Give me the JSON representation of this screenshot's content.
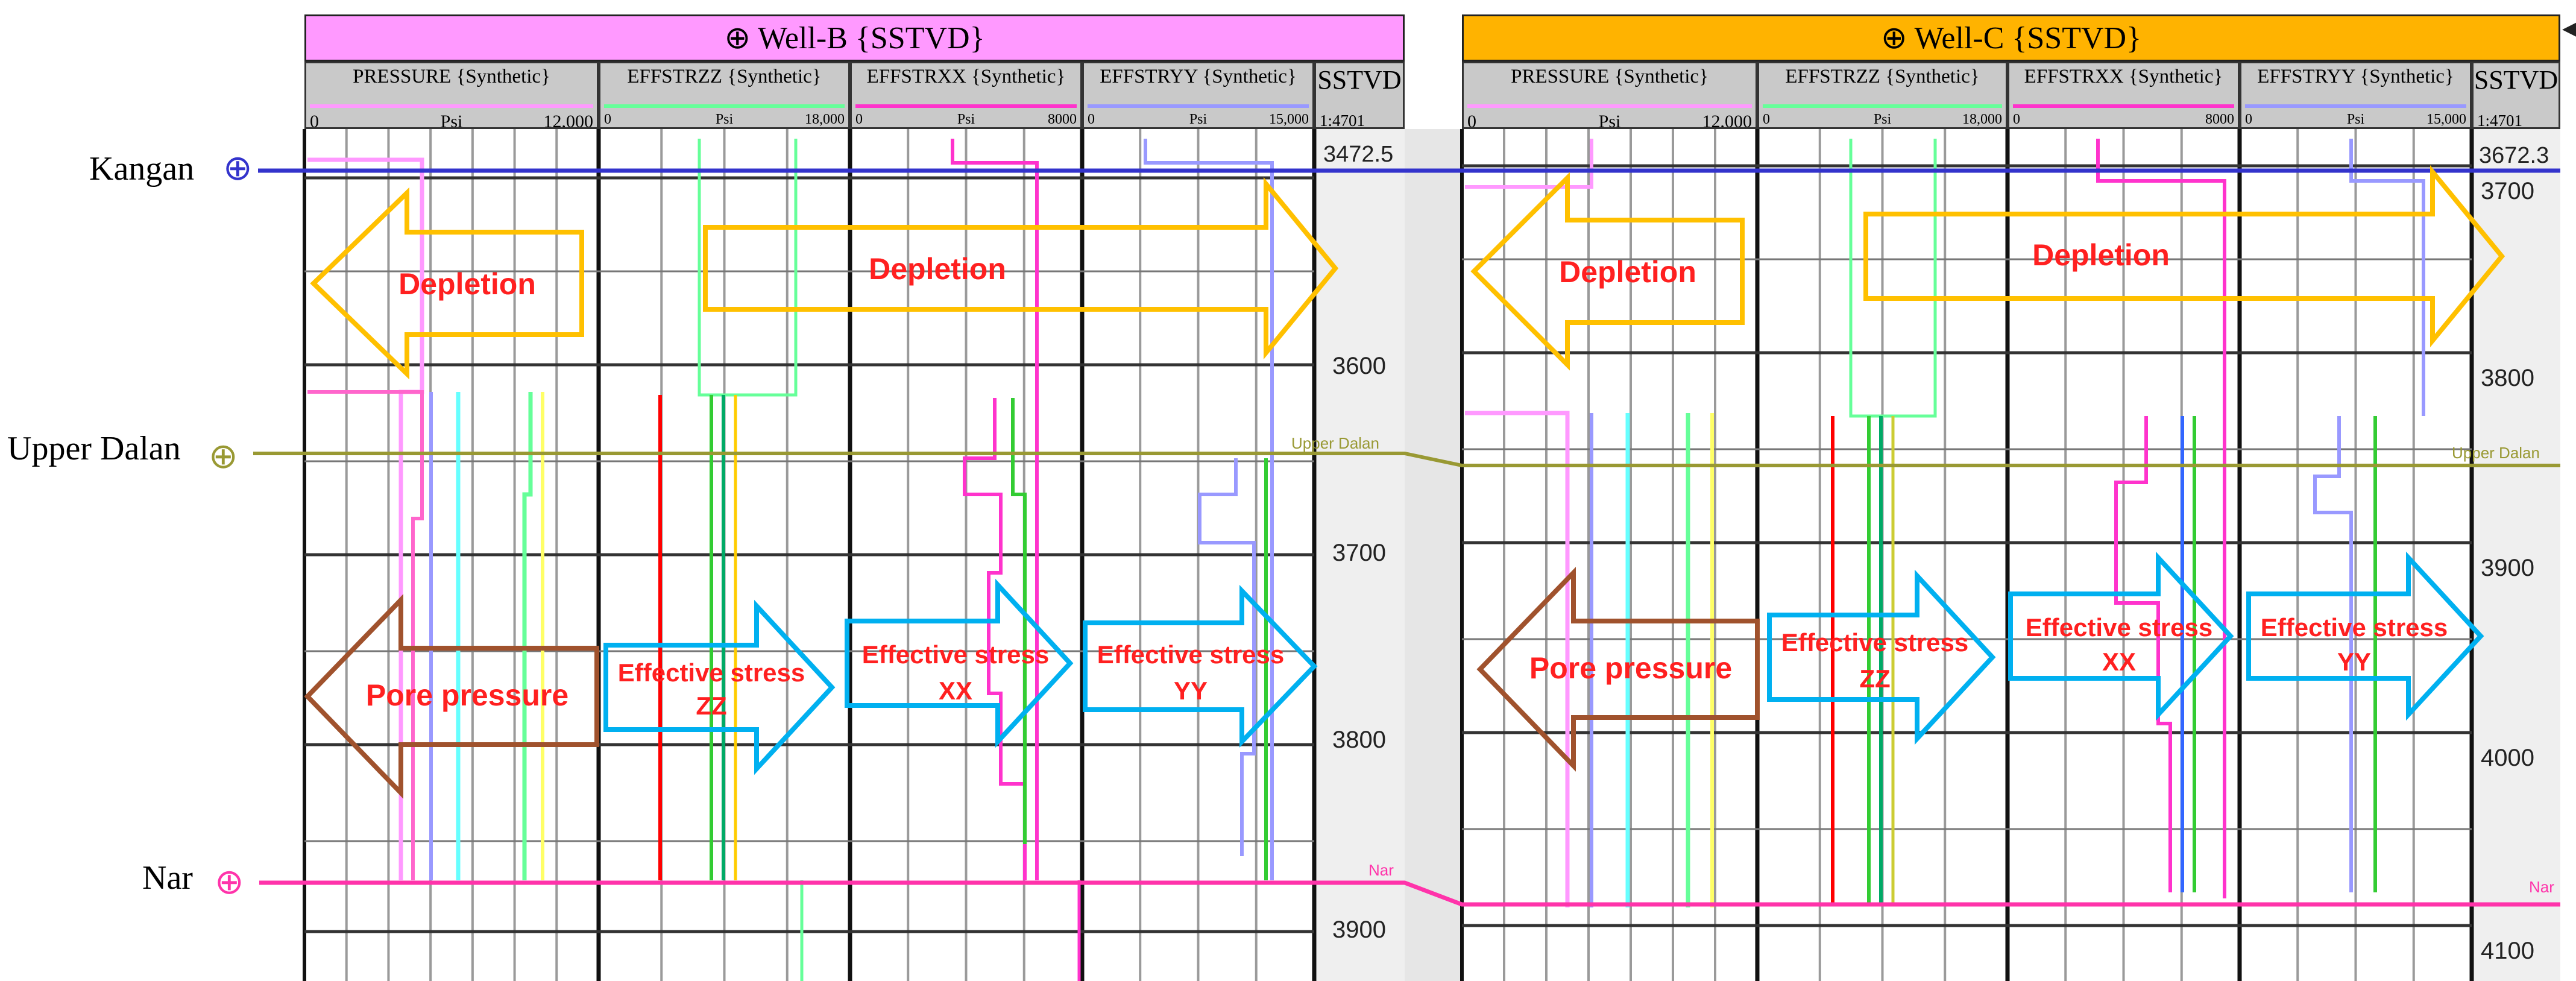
{
  "wells": [
    {
      "title": "Well-B {SSTVD}",
      "header_color": "#FF99FF",
      "tracks": [
        {
          "name": "PRESSURE {Synthetic}",
          "min": "0",
          "unit": "Psi",
          "max": "12,000",
          "color": "#FF99FF"
        },
        {
          "name": "EFFSTRZZ {Synthetic}",
          "min": "0",
          "unit": "Psi",
          "max": "18,000",
          "color": "#66FF99"
        },
        {
          "name": "EFFSTRXX {Synthetic}",
          "min": "0",
          "unit": "Psi",
          "max": "8000",
          "color": "#FF33CC"
        },
        {
          "name": "EFFSTRYY {Synthetic}",
          "min": "0",
          "unit": "Psi",
          "max": "15,000",
          "color": "#9999FF"
        }
      ],
      "depth_track": {
        "name": "SSTVD",
        "scale": "1:4701",
        "top_depth": "3472.5",
        "ticks": [
          "3600",
          "3700",
          "3800",
          "3900"
        ]
      },
      "horizon_labels": [
        "Kangan",
        "Upper Dalan",
        "Nar"
      ],
      "annotations": {
        "depletion_left": "Depletion",
        "depletion_right": "Depletion",
        "pore_pressure": "Pore pressure",
        "zz_line1": "Effective stress",
        "zz_line2": "ZZ",
        "xx_line1": "Effective stress",
        "xx_line2": "XX",
        "yy_line1": "Effective stress",
        "yy_line2": "YY"
      }
    },
    {
      "title": "Well-C {SSTVD}",
      "header_color": "#FFB300",
      "tracks": [
        {
          "name": "PRESSURE {Synthetic}",
          "min": "0",
          "unit": "Psi",
          "max": "12,000",
          "color": "#FF99FF"
        },
        {
          "name": "EFFSTRZZ {Synthetic}",
          "min": "0",
          "unit": "Psi",
          "max": "18,000",
          "color": "#66FF99"
        },
        {
          "name": "EFFSTRXX {Synthetic}",
          "min": "0",
          "unit": "",
          "max": "8000",
          "color": "#FF33CC"
        },
        {
          "name": "EFFSTRYY {Synthetic}",
          "min": "0",
          "unit": "Psi",
          "max": "15,000",
          "color": "#9999FF"
        }
      ],
      "depth_track": {
        "name": "SSTVD",
        "scale": "1:4701",
        "top_depth": "3672.3",
        "ticks": [
          "3700",
          "3800",
          "3900",
          "4000",
          "4100"
        ]
      },
      "horizon_labels": [
        "Kangan",
        "Upper Dalan",
        "Nar"
      ],
      "annotations": {
        "depletion_left": "Depletion",
        "depletion_right": "Depletion",
        "pore_pressure": "Pore pressure",
        "zz_line1": "Effective stress",
        "zz_line2": "ZZ",
        "xx_line1": "Effective stress",
        "xx_line2": "XX",
        "yy_line1": "Effective stress",
        "yy_line2": "YY"
      }
    }
  ],
  "horizons": [
    {
      "name": "Kangan",
      "color": "#3333CC"
    },
    {
      "name": "Upper Dalan",
      "color": "#999933"
    },
    {
      "name": "Nar",
      "color": "#FF33AA"
    }
  ],
  "colors": {
    "annotation_text": "#FF2020",
    "depletion_arrow": "#FFC000",
    "pore_arrow": "#A0522D",
    "stress_arrow": "#00B0F0"
  }
}
